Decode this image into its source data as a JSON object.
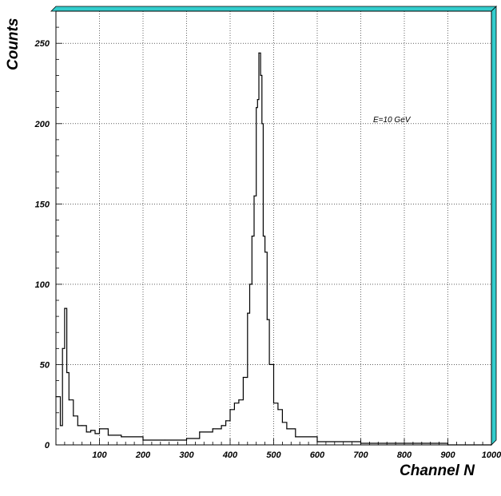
{
  "chart_data": {
    "type": "line",
    "style": "histogram-step",
    "xlabel": "Channel N",
    "ylabel": "Counts",
    "annotation": "E=10 GeV",
    "xlim": [
      0,
      1000
    ],
    "ylim": [
      0,
      270
    ],
    "x_ticks": [
      100,
      200,
      300,
      400,
      500,
      600,
      700,
      800,
      900,
      1000
    ],
    "y_ticks": [
      0,
      50,
      100,
      150,
      200,
      250
    ],
    "grid": true,
    "frame_color": "#33cccc",
    "series": [
      {
        "color": "#000000",
        "x": [
          0,
          10,
          15,
          20,
          25,
          30,
          40,
          50,
          60,
          70,
          80,
          90,
          100,
          120,
          150,
          200,
          250,
          300,
          330,
          360,
          380,
          390,
          400,
          410,
          420,
          430,
          440,
          445,
          450,
          455,
          460,
          463,
          466,
          470,
          473,
          476,
          480,
          485,
          490,
          500,
          510,
          520,
          530,
          550,
          600,
          700,
          800,
          900,
          1000
        ],
        "y": [
          30,
          12,
          60,
          85,
          45,
          28,
          18,
          12,
          12,
          8,
          9,
          7,
          10,
          6,
          5,
          3,
          3,
          4,
          8,
          10,
          12,
          15,
          22,
          26,
          28,
          42,
          82,
          100,
          130,
          155,
          210,
          215,
          244,
          230,
          200,
          130,
          120,
          78,
          50,
          26,
          22,
          14,
          10,
          5,
          2,
          1,
          1,
          0,
          0
        ]
      }
    ]
  }
}
